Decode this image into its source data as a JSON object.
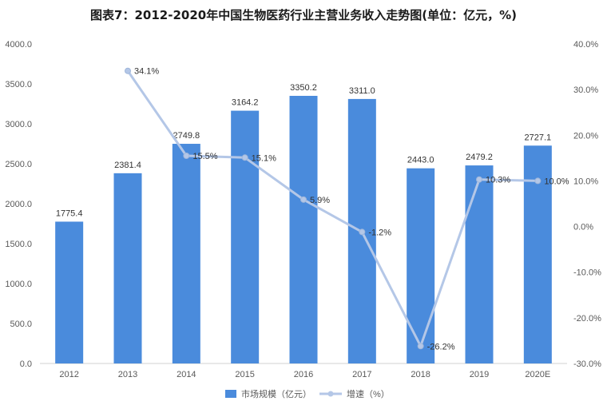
{
  "chart_data": {
    "type": "bar",
    "title": "图表7：2012-2020年中国生物医药行业主营业务收入走势图(单位：亿元，%)",
    "categories": [
      "2012",
      "2013",
      "2014",
      "2015",
      "2016",
      "2017",
      "2018",
      "2019",
      "2020E"
    ],
    "series": [
      {
        "name": "市场规模（亿元）",
        "type": "bar",
        "axis": "left",
        "color": "#4a8bdc",
        "values": [
          1775.4,
          2381.4,
          2749.8,
          3164.2,
          3350.2,
          3311.0,
          2443.0,
          2479.2,
          2727.1
        ],
        "labels": [
          "1775.4",
          "2381.4",
          "2749.8",
          "3164.2",
          "3350.2",
          "3311.0",
          "2443.0",
          "2479.2",
          "2727.1"
        ]
      },
      {
        "name": "增速（%）",
        "type": "line",
        "axis": "right",
        "color": "#b4c7e7",
        "values": [
          null,
          34.1,
          15.5,
          15.1,
          5.9,
          -1.2,
          -26.2,
          10.3,
          10.0
        ],
        "labels": [
          "",
          "34.1%",
          "15.5%",
          "15.1%",
          "5.9%",
          "-1.2%",
          "-26.2%",
          "10.3%",
          "10.0%"
        ]
      }
    ],
    "y_left": {
      "min": 0,
      "max": 4000,
      "step": 500,
      "tick_labels": [
        "0.0",
        "500.0",
        "1000.0",
        "1500.0",
        "2000.0",
        "2500.0",
        "3000.0",
        "3500.0",
        "4000.0"
      ]
    },
    "y_right": {
      "min": -30,
      "max": 40,
      "step": 10,
      "tick_labels": [
        "-30.0%",
        "-20.0%",
        "-10.0%",
        "0.0%",
        "10.0%",
        "20.0%",
        "30.0%",
        "40.0%"
      ]
    },
    "grid": false,
    "legend_position": "bottom-center",
    "legend": [
      "市场规模（亿元）",
      "增速（%）"
    ]
  }
}
